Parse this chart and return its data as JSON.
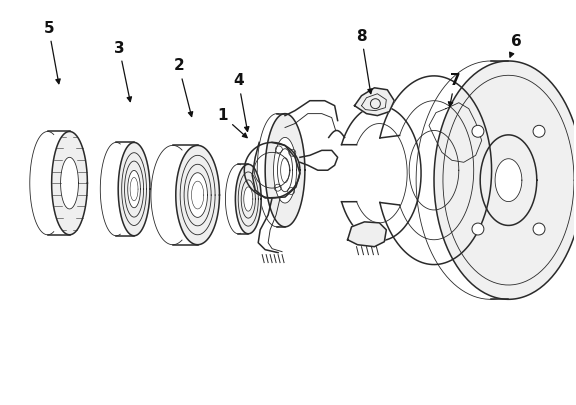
{
  "background_color": "#ffffff",
  "line_color": "#2a2a2a",
  "label_color": "#111111",
  "fig_width": 5.76,
  "fig_height": 4.05,
  "dpi": 100
}
